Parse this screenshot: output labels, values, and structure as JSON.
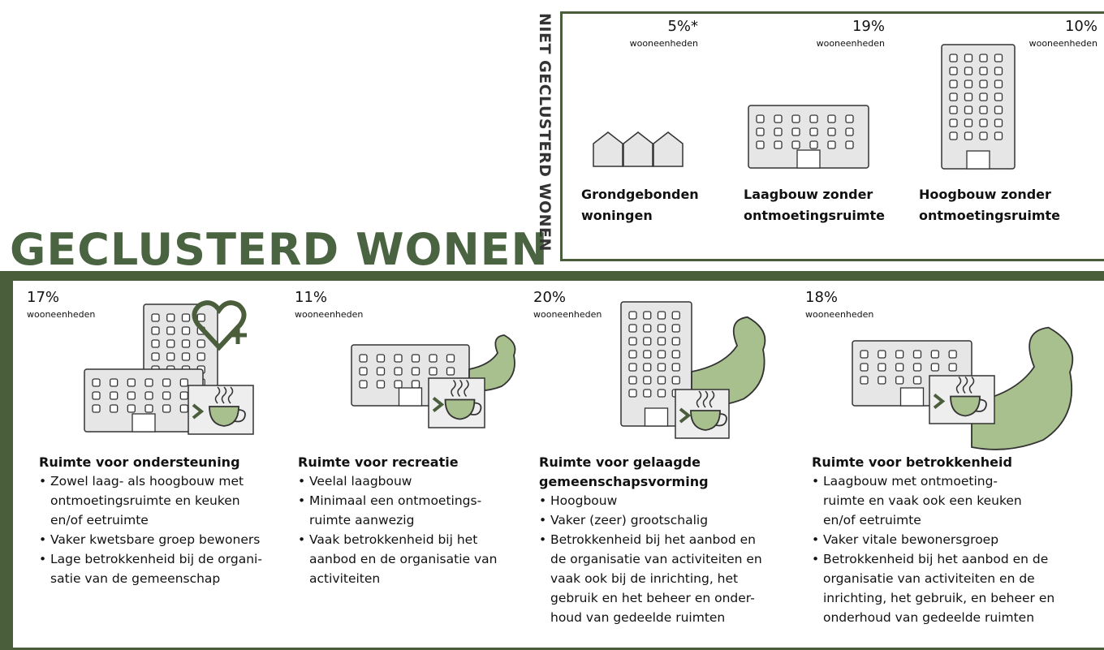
{
  "niet_geclusterd": {
    "title": "NIET GECLUSTERD WONEN",
    "items": [
      {
        "percent": "5%*",
        "unit": "wooneenheden",
        "label": [
          "Grondgebonden",
          "woningen"
        ]
      },
      {
        "percent": "19%",
        "unit": "wooneenheden",
        "label": [
          "Laagbouw zonder",
          "ontmoetingsruimte"
        ]
      },
      {
        "percent": "10%",
        "unit": "wooneenheden",
        "label": [
          "Hoogbouw zonder",
          "ontmoetingsruimte"
        ]
      }
    ]
  },
  "geclusterd": {
    "title": "GECLUSTERD WONEN",
    "items": [
      {
        "percent": "17%",
        "unit": "wooneenheden",
        "heading": [
          "Ruimte voor ondersteuning"
        ],
        "bullets": [
          [
            "Zowel laag- als hoogbouw met",
            "ontmoetingsruimte en keuken",
            "en/of eetruimte"
          ],
          [
            "Vaker kwetsbare groep bewoners"
          ],
          [
            "Lage betrokkenheid bij de organi-",
            "satie van de gemeenschap"
          ]
        ]
      },
      {
        "percent": "11%",
        "unit": "wooneenheden",
        "heading": [
          "Ruimte voor recreatie"
        ],
        "bullets": [
          [
            "Veelal laagbouw"
          ],
          [
            "Minimaal een ontmoetings-",
            "ruimte aanwezig"
          ],
          [
            "Vaak betrokkenheid bij het",
            "aanbod en de organisatie van",
            "activiteiten"
          ]
        ]
      },
      {
        "percent": "20%",
        "unit": "wooneenheden",
        "heading": [
          "Ruimte voor gelaagde",
          "gemeenschapsvorming"
        ],
        "bullets": [
          [
            "Hoogbouw"
          ],
          [
            "Vaker (zeer) grootschalig"
          ],
          [
            "Betrokkenheid bij het aanbod en",
            "de organisatie van activiteiten en",
            "vaak ook bij de inrichting, het",
            "gebruik en het beheer en onder-",
            "houd van gedeelde ruimten"
          ]
        ]
      },
      {
        "percent": "18%",
        "unit": "wooneenheden",
        "heading": [
          "Ruimte voor betrokkenheid"
        ],
        "bullets": [
          [
            "Laagbouw met ontmoeting-",
            "ruimte en vaak ook een keuken",
            "en/of eetruimte"
          ],
          [
            "Vaker vitale bewonersgroep"
          ],
          [
            "Betrokkenheid bij het aanbod en de",
            "organisatie van activiteiten en de",
            "inrichting, het gebruik, en beheer en",
            "onderhoud van gedeelde ruimten"
          ]
        ]
      }
    ]
  }
}
